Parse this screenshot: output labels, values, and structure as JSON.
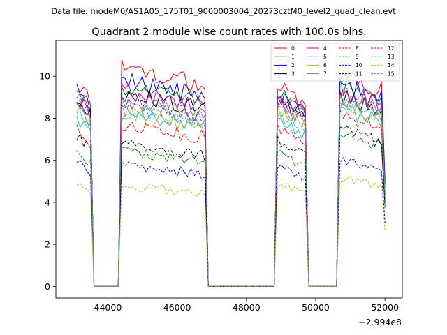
{
  "chart_data": {
    "type": "line",
    "suptitle": "Data file: modeM0/AS1A05_175T01_9000003004_20273cztM0_level2_quad_clean.evt",
    "title": "Quadrant 2 module wise count rates with 100.0s bins.",
    "xlabel": "",
    "ylabel": "",
    "x_offset_label": "+2.994e8",
    "xlim": [
      42500,
      52500
    ],
    "ylim": [
      -0.55,
      11.7
    ],
    "x_ticks": [
      44000,
      46000,
      48000,
      50000,
      52000
    ],
    "x_tick_labels": [
      "44000",
      "46000",
      "48000",
      "50000",
      "52000"
    ],
    "y_ticks": [
      0,
      2,
      4,
      6,
      8,
      10
    ],
    "y_tick_labels": [
      "0",
      "2",
      "4",
      "6",
      "8",
      "10"
    ],
    "grid": false,
    "legend_position": "top-right",
    "legend_columns": 4,
    "segments": [
      {
        "start": 43100,
        "end": 43500
      },
      {
        "start": 44400,
        "end": 46800
      },
      {
        "start": 48900,
        "end": 49700
      },
      {
        "start": 50700,
        "end": 52000
      }
    ],
    "gap_level": 0,
    "series": [
      {
        "name": "0",
        "color": "#ff0000",
        "dash": "solid",
        "levels": [
          9.7,
          10.4,
          9.5,
          10.1
        ]
      },
      {
        "name": "1",
        "color": "#008000",
        "dash": "solid",
        "levels": [
          9.0,
          9.5,
          9.2,
          9.6
        ]
      },
      {
        "name": "2",
        "color": "#0000ff",
        "dash": "solid",
        "levels": [
          9.3,
          9.8,
          9.0,
          9.7
        ]
      },
      {
        "name": "3",
        "color": "#000000",
        "dash": "solid",
        "levels": [
          8.8,
          9.2,
          8.8,
          9.1
        ]
      },
      {
        "name": "4",
        "color": "#bf00bf",
        "dash": "solid",
        "levels": [
          8.9,
          9.3,
          8.9,
          9.3
        ]
      },
      {
        "name": "5",
        "color": "#17becf",
        "dash": "solid",
        "levels": [
          8.0,
          8.3,
          7.9,
          8.4
        ]
      },
      {
        "name": "6",
        "color": "#bcbd22",
        "dash": "solid",
        "levels": [
          8.4,
          8.2,
          8.3,
          8.6
        ]
      },
      {
        "name": "7",
        "color": "#7f7f7f",
        "dash": "solid",
        "levels": [
          8.6,
          8.8,
          8.6,
          9.0
        ]
      },
      {
        "name": "8",
        "color": "#ff0000",
        "dash": "dashed",
        "levels": [
          7.4,
          7.7,
          7.6,
          8.2
        ]
      },
      {
        "name": "9",
        "color": "#008000",
        "dash": "dashed",
        "levels": [
          6.4,
          6.5,
          6.3,
          7.1
        ]
      },
      {
        "name": "10",
        "color": "#0000ff",
        "dash": "dashed",
        "levels": [
          6.0,
          5.8,
          5.7,
          6.0
        ]
      },
      {
        "name": "11",
        "color": "#000000",
        "dash": "dashed",
        "levels": [
          7.2,
          6.8,
          7.0,
          7.4
        ]
      },
      {
        "name": "12",
        "color": "#bf00bf",
        "dash": "dashed",
        "levels": [
          9.0,
          8.9,
          8.8,
          9.2
        ]
      },
      {
        "name": "13",
        "color": "#17becf",
        "dash": "dashed",
        "levels": [
          8.2,
          8.6,
          8.1,
          8.7
        ]
      },
      {
        "name": "14",
        "color": "#bcbd22",
        "dash": "dashed",
        "levels": [
          4.95,
          4.8,
          4.85,
          5.1
        ]
      },
      {
        "name": "15",
        "color": "#7f7f7f",
        "dash": "dashed",
        "levels": [
          8.7,
          8.5,
          8.5,
          8.9
        ]
      }
    ]
  }
}
